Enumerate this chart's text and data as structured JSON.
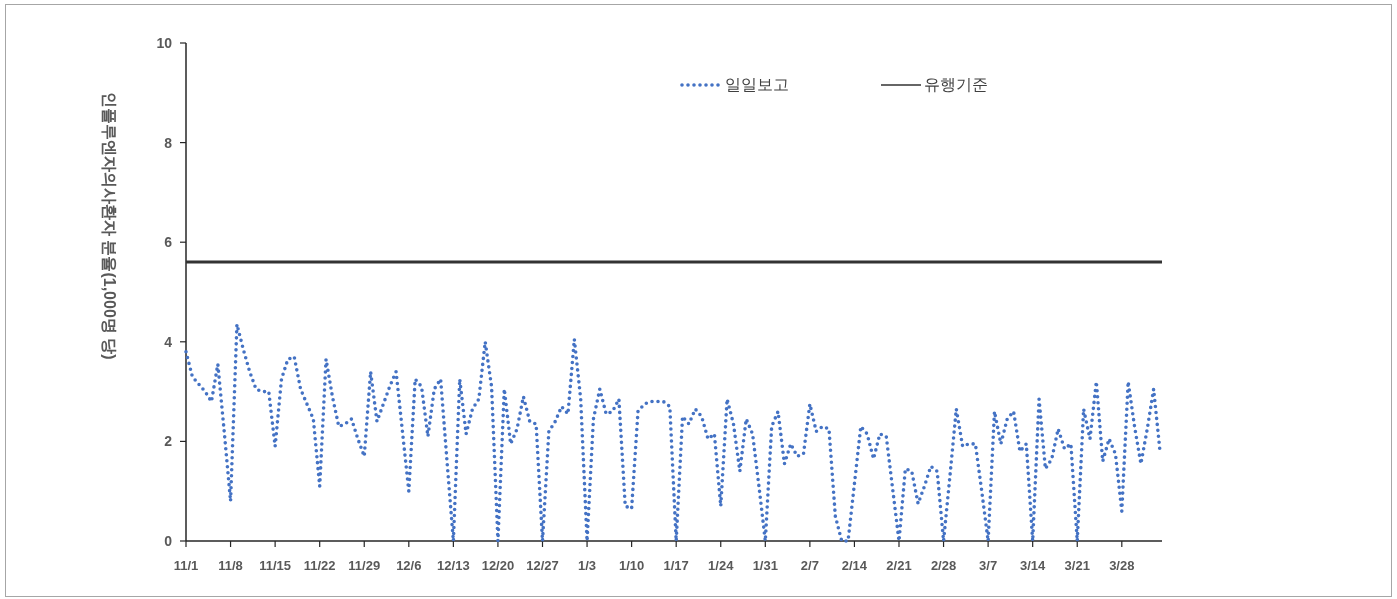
{
  "chart_data": {
    "type": "line",
    "ylabel": "인플루엔자의사환자 분율(1,000명 당)",
    "legend": "top",
    "categories": [
      "11/1",
      null,
      null,
      null,
      null,
      null,
      null,
      "11/8",
      null,
      null,
      null,
      null,
      null,
      null,
      "11/15",
      null,
      null,
      null,
      null,
      null,
      null,
      "11/22",
      null,
      null,
      null,
      null,
      null,
      null,
      "11/29",
      null,
      null,
      null,
      null,
      null,
      null,
      "12/6",
      null,
      null,
      null,
      null,
      null,
      null,
      "12/13",
      null,
      null,
      null,
      null,
      null,
      null,
      "12/20",
      null,
      null,
      null,
      null,
      null,
      null,
      "12/27",
      null,
      null,
      null,
      null,
      null,
      null,
      "1/3",
      null,
      null,
      null,
      null,
      null,
      null,
      "1/10",
      null,
      null,
      null,
      null,
      null,
      null,
      "1/17",
      null,
      null,
      null,
      null,
      null,
      null,
      "1/24",
      null,
      null,
      null,
      null,
      null,
      null,
      "1/31",
      null,
      null,
      null,
      null,
      null,
      null,
      "2/7",
      null,
      null,
      null,
      null,
      null,
      null,
      "2/14",
      null,
      null,
      null,
      null,
      null,
      null,
      "2/21",
      null,
      null,
      null,
      null,
      null,
      null,
      "2/28",
      null,
      null,
      null,
      null,
      null,
      null,
      "3/7",
      null,
      null,
      null,
      null,
      null,
      null,
      "3/14",
      null,
      null,
      null,
      null,
      null,
      null,
      "3/21",
      null,
      null,
      null,
      null,
      null,
      null,
      "3/28",
      null,
      null,
      null,
      null,
      null,
      null
    ],
    "series": [
      {
        "name": "일일보고",
        "color": "#4472c4",
        "line_style": "dotted",
        "values": [
          3.8,
          3.3,
          3.15,
          3.0,
          2.8,
          3.55,
          2.2,
          0.8,
          4.35,
          3.85,
          3.4,
          3.05,
          3.0,
          3.0,
          1.9,
          3.25,
          3.65,
          3.7,
          3.05,
          2.75,
          2.45,
          1.1,
          3.65,
          2.9,
          2.3,
          2.35,
          2.45,
          2.05,
          1.7,
          3.4,
          2.4,
          2.75,
          3.1,
          3.4,
          2.2,
          1.0,
          3.25,
          3.1,
          2.1,
          3.05,
          3.25,
          1.6,
          0,
          3.25,
          2.15,
          2.65,
          2.85,
          4.0,
          3.1,
          0,
          3.05,
          1.95,
          2.25,
          2.9,
          2.4,
          2.35,
          0,
          2.2,
          2.4,
          2.7,
          2.55,
          4.05,
          2.85,
          0,
          2.45,
          3.05,
          2.55,
          2.6,
          2.85,
          0.7,
          0.65,
          2.6,
          2.75,
          2.8,
          2.8,
          2.8,
          2.7,
          0,
          2.5,
          2.35,
          2.65,
          2.5,
          2.05,
          2.15,
          0.7,
          2.85,
          2.35,
          1.4,
          2.45,
          2.15,
          1.1,
          0,
          2.3,
          2.6,
          1.55,
          1.95,
          1.7,
          1.75,
          2.75,
          2.2,
          2.3,
          2.25,
          0.5,
          0,
          0,
          1.15,
          2.3,
          2.15,
          1.65,
          2.15,
          2.1,
          1.05,
          0,
          1.45,
          1.4,
          0.75,
          1.1,
          1.5,
          1.4,
          0,
          1.3,
          2.65,
          1.9,
          1.95,
          1.95,
          1.0,
          0,
          2.6,
          1.95,
          2.45,
          2.6,
          1.8,
          1.95,
          0,
          2.85,
          1.45,
          1.65,
          2.25,
          1.85,
          1.95,
          0,
          2.65,
          2.05,
          3.2,
          1.6,
          2.05,
          1.75,
          0.6,
          3.2,
          2.3,
          1.55,
          2.25,
          3.05,
          1.8
        ]
      }
    ],
    "ref_lines": [
      {
        "axis": "y",
        "value": 5.6,
        "label": "유행기준",
        "color": "#333333",
        "line_style": "solid"
      }
    ],
    "ylim": [
      0,
      10
    ],
    "yticks": [
      0,
      2,
      4,
      6,
      8,
      10
    ]
  }
}
